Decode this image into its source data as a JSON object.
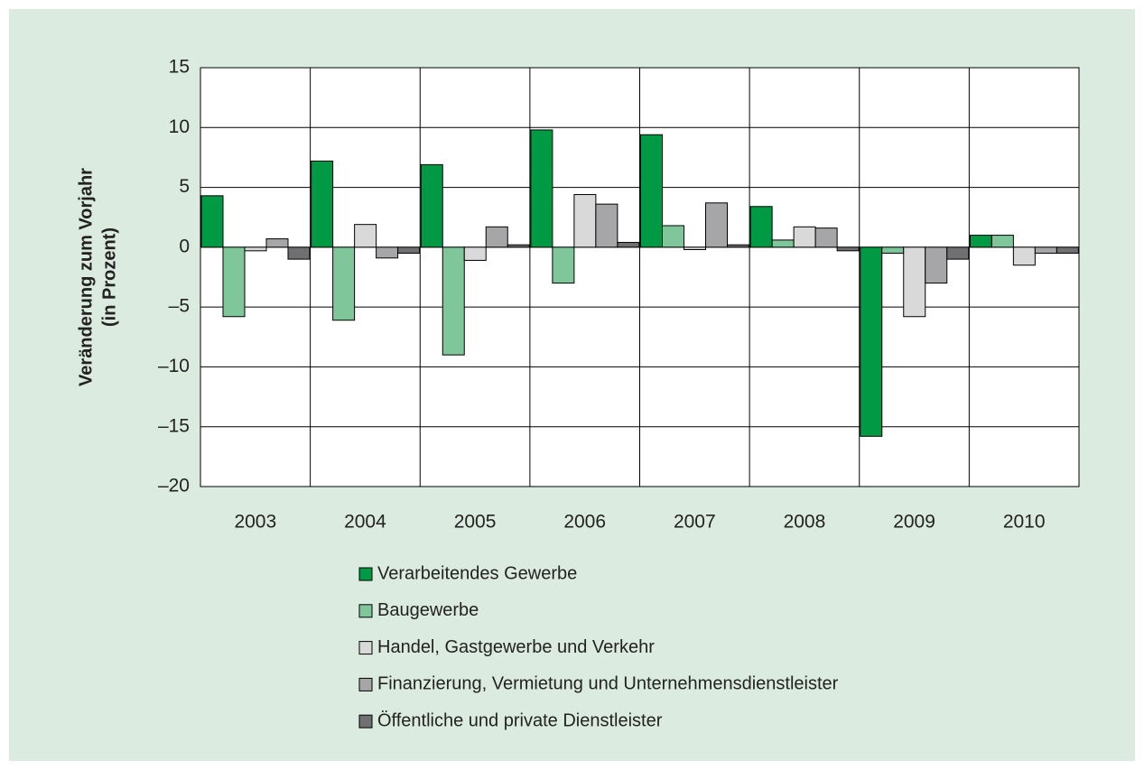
{
  "chart_data": {
    "type": "bar",
    "y_label": [
      "Veränderung zum Vorjahr",
      "(in Prozent)"
    ],
    "categories": [
      "2003",
      "2004",
      "2005",
      "2006",
      "2007",
      "2008",
      "2009",
      "2010"
    ],
    "series": [
      {
        "name": "Verarbeitendes Gewerbe",
        "color": "#009a44",
        "values": [
          4.3,
          7.2,
          6.9,
          9.8,
          9.4,
          3.4,
          -15.8,
          1.0
        ]
      },
      {
        "name": "Baugewerbe",
        "color": "#7fc79a",
        "values": [
          -5.8,
          -6.1,
          -9.0,
          -3.0,
          1.8,
          0.6,
          -0.5,
          1.0
        ]
      },
      {
        "name": "Handel, Gastgewerbe und Verkehr",
        "color": "#d9d9d9",
        "values": [
          -0.3,
          1.9,
          -1.1,
          4.4,
          -0.2,
          1.7,
          -5.8,
          -1.5
        ]
      },
      {
        "name": "Finanzierung, Vermietung und Unternehmensdienstleister",
        "color": "#a6a6a8",
        "values": [
          0.7,
          -0.9,
          1.7,
          3.6,
          3.7,
          1.6,
          -3.0,
          -0.5
        ]
      },
      {
        "name": "Öffentliche und private Dienstleister",
        "color": "#707072",
        "values": [
          -1.0,
          -0.5,
          0.2,
          0.4,
          0.2,
          -0.3,
          -1.0,
          -0.5
        ]
      }
    ],
    "ylim": [
      -20,
      15
    ],
    "yticks": [
      {
        "value": -20,
        "label": "–20"
      },
      {
        "value": -15,
        "label": "–15"
      },
      {
        "value": -10,
        "label": "–10"
      },
      {
        "value": -5,
        "label": "–5"
      },
      0,
      5,
      10,
      15
    ],
    "grid": true
  }
}
